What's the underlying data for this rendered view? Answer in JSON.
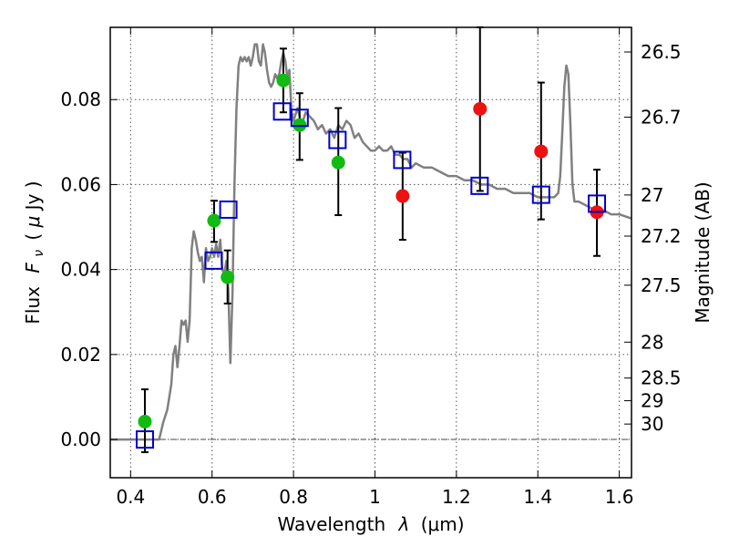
{
  "chart_data": {
    "type": "scatter",
    "xlabel": {
      "prefix": "Wavelength",
      "symbol": "λ",
      "unit": "(μm)"
    },
    "ylabel": {
      "prefix": "Flux",
      "symbol": "F",
      "sub": "ν",
      "unit_open": "( ",
      "unit_mu": "μ",
      "unit_rest": "Jy )"
    },
    "ylabel_right": "Magnitude (AB)",
    "xlim": [
      0.35,
      1.63
    ],
    "ylim": [
      -0.009,
      0.097
    ],
    "x_ticks": [
      0.4,
      0.6,
      0.8,
      1.0,
      1.2,
      1.4,
      1.6
    ],
    "x_tick_labels": [
      "0.4",
      "0.6",
      "0.8",
      "1",
      "1.2",
      "1.4",
      "1.6"
    ],
    "y_ticks": [
      0.0,
      0.02,
      0.04,
      0.06,
      0.08
    ],
    "y_tick_labels": [
      "0.00",
      "0.02",
      "0.04",
      "0.06",
      "0.08"
    ],
    "right_ticks": [
      {
        "label": "26.5",
        "mag": 26.5
      },
      {
        "label": "26.7",
        "mag": 26.7
      },
      {
        "label": "27",
        "mag": 27.0
      },
      {
        "label": "27.2",
        "mag": 27.2
      },
      {
        "label": "27.5",
        "mag": 27.5
      },
      {
        "label": "28",
        "mag": 28.0
      },
      {
        "label": "28.5",
        "mag": 28.5
      },
      {
        "label": "29",
        "mag": 29.0
      },
      {
        "label": "30",
        "mag": 30.0
      }
    ],
    "grid": true,
    "zero_line": true,
    "colors": {
      "model": "#808080",
      "green": "#11bb11",
      "red": "#ee1111",
      "square": "#0000cc",
      "errorbar": "#000000",
      "grid": "#555555"
    },
    "model_spectrum": [
      [
        0.35,
        0.0
      ],
      [
        0.47,
        0.0
      ],
      [
        0.48,
        0.004
      ],
      [
        0.49,
        0.007
      ],
      [
        0.5,
        0.013
      ],
      [
        0.505,
        0.02
      ],
      [
        0.51,
        0.022
      ],
      [
        0.515,
        0.017
      ],
      [
        0.52,
        0.022
      ],
      [
        0.525,
        0.028
      ],
      [
        0.53,
        0.027
      ],
      [
        0.535,
        0.028
      ],
      [
        0.54,
        0.023
      ],
      [
        0.545,
        0.028
      ],
      [
        0.55,
        0.045
      ],
      [
        0.555,
        0.049
      ],
      [
        0.56,
        0.047
      ],
      [
        0.565,
        0.044
      ],
      [
        0.57,
        0.042
      ],
      [
        0.575,
        0.043
      ],
      [
        0.58,
        0.037
      ],
      [
        0.585,
        0.045
      ],
      [
        0.59,
        0.042
      ],
      [
        0.595,
        0.043
      ],
      [
        0.6,
        0.045
      ],
      [
        0.605,
        0.043
      ],
      [
        0.61,
        0.046
      ],
      [
        0.615,
        0.043
      ],
      [
        0.62,
        0.047
      ],
      [
        0.625,
        0.04
      ],
      [
        0.63,
        0.039
      ],
      [
        0.635,
        0.042
      ],
      [
        0.64,
        0.035
      ],
      [
        0.645,
        0.018
      ],
      [
        0.65,
        0.034
      ],
      [
        0.655,
        0.06
      ],
      [
        0.66,
        0.078
      ],
      [
        0.665,
        0.088
      ],
      [
        0.67,
        0.09
      ],
      [
        0.675,
        0.089
      ],
      [
        0.68,
        0.09
      ],
      [
        0.685,
        0.089
      ],
      [
        0.69,
        0.09
      ],
      [
        0.695,
        0.088
      ],
      [
        0.7,
        0.09
      ],
      [
        0.705,
        0.093
      ],
      [
        0.71,
        0.093
      ],
      [
        0.715,
        0.089
      ],
      [
        0.72,
        0.088
      ],
      [
        0.725,
        0.093
      ],
      [
        0.73,
        0.091
      ],
      [
        0.735,
        0.087
      ],
      [
        0.74,
        0.084
      ],
      [
        0.745,
        0.083
      ],
      [
        0.75,
        0.084
      ],
      [
        0.755,
        0.086
      ],
      [
        0.76,
        0.085
      ],
      [
        0.765,
        0.086
      ],
      [
        0.77,
        0.089
      ],
      [
        0.775,
        0.091
      ],
      [
        0.78,
        0.089
      ],
      [
        0.785,
        0.085
      ],
      [
        0.79,
        0.087
      ],
      [
        0.795,
        0.077
      ],
      [
        0.8,
        0.075
      ],
      [
        0.81,
        0.078
      ],
      [
        0.82,
        0.074
      ],
      [
        0.83,
        0.077
      ],
      [
        0.84,
        0.076
      ],
      [
        0.85,
        0.075
      ],
      [
        0.86,
        0.073
      ],
      [
        0.87,
        0.074
      ],
      [
        0.88,
        0.072
      ],
      [
        0.89,
        0.073
      ],
      [
        0.9,
        0.071
      ],
      [
        0.91,
        0.074
      ],
      [
        0.92,
        0.073
      ],
      [
        0.93,
        0.075
      ],
      [
        0.94,
        0.074
      ],
      [
        0.95,
        0.071
      ],
      [
        0.96,
        0.072
      ],
      [
        0.97,
        0.07
      ],
      [
        0.98,
        0.069
      ],
      [
        0.99,
        0.068
      ],
      [
        1.0,
        0.068
      ],
      [
        1.01,
        0.069
      ],
      [
        1.02,
        0.068
      ],
      [
        1.03,
        0.068
      ],
      [
        1.04,
        0.069
      ],
      [
        1.05,
        0.067
      ],
      [
        1.06,
        0.067
      ],
      [
        1.07,
        0.066
      ],
      [
        1.08,
        0.066
      ],
      [
        1.09,
        0.064
      ],
      [
        1.1,
        0.065
      ],
      [
        1.12,
        0.064
      ],
      [
        1.14,
        0.064
      ],
      [
        1.16,
        0.063
      ],
      [
        1.18,
        0.062
      ],
      [
        1.2,
        0.062
      ],
      [
        1.22,
        0.061
      ],
      [
        1.24,
        0.061
      ],
      [
        1.26,
        0.06
      ],
      [
        1.28,
        0.06
      ],
      [
        1.3,
        0.059
      ],
      [
        1.32,
        0.059
      ],
      [
        1.34,
        0.058
      ],
      [
        1.36,
        0.058
      ],
      [
        1.38,
        0.058
      ],
      [
        1.4,
        0.057
      ],
      [
        1.42,
        0.057
      ],
      [
        1.44,
        0.057
      ],
      [
        1.45,
        0.058
      ],
      [
        1.455,
        0.062
      ],
      [
        1.46,
        0.072
      ],
      [
        1.465,
        0.083
      ],
      [
        1.47,
        0.088
      ],
      [
        1.475,
        0.086
      ],
      [
        1.48,
        0.074
      ],
      [
        1.485,
        0.06
      ],
      [
        1.49,
        0.056
      ],
      [
        1.5,
        0.056
      ],
      [
        1.52,
        0.055
      ],
      [
        1.54,
        0.054
      ],
      [
        1.56,
        0.054
      ],
      [
        1.58,
        0.053
      ],
      [
        1.6,
        0.053
      ],
      [
        1.63,
        0.052
      ]
    ],
    "green_points": [
      {
        "x": 0.435,
        "y": 0.0042,
        "err_lo": -0.003,
        "err_hi": 0.0118
      },
      {
        "x": 0.605,
        "y": 0.0515,
        "err_lo": 0.0465,
        "err_hi": 0.0562
      },
      {
        "x": 0.638,
        "y": 0.0382,
        "err_lo": 0.032,
        "err_hi": 0.0445
      },
      {
        "x": 0.775,
        "y": 0.0845,
        "err_lo": 0.077,
        "err_hi": 0.092
      },
      {
        "x": 0.815,
        "y": 0.074,
        "err_lo": 0.0658,
        "err_hi": 0.0815
      },
      {
        "x": 0.91,
        "y": 0.0652,
        "err_lo": 0.0528,
        "err_hi": 0.078
      }
    ],
    "red_points": [
      {
        "x": 1.068,
        "y": 0.0573,
        "err_lo": 0.047,
        "err_hi": 0.0675
      },
      {
        "x": 1.258,
        "y": 0.0778,
        "err_lo": 0.0585,
        "err_hi": 0.097
      },
      {
        "x": 1.408,
        "y": 0.0678,
        "err_lo": 0.0518,
        "err_hi": 0.084
      },
      {
        "x": 1.545,
        "y": 0.0535,
        "err_lo": 0.0432,
        "err_hi": 0.0635
      }
    ],
    "square_points": [
      {
        "x": 0.435,
        "y": 0.0
      },
      {
        "x": 0.604,
        "y": 0.0421
      },
      {
        "x": 0.64,
        "y": 0.0541
      },
      {
        "x": 0.772,
        "y": 0.0772
      },
      {
        "x": 0.815,
        "y": 0.0757
      },
      {
        "x": 0.908,
        "y": 0.0705
      },
      {
        "x": 1.067,
        "y": 0.0658
      },
      {
        "x": 1.257,
        "y": 0.0597
      },
      {
        "x": 1.408,
        "y": 0.0576
      },
      {
        "x": 1.545,
        "y": 0.0555
      }
    ]
  }
}
